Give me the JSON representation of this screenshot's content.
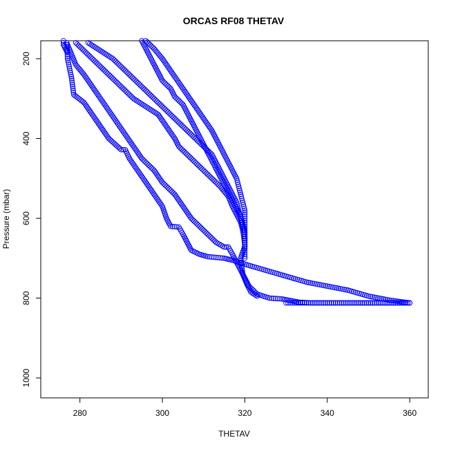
{
  "chart_data": {
    "type": "scatter",
    "title": "ORCAS RF08 THETAV",
    "xlabel": "THETAV",
    "ylabel": "Pressure (mbar)",
    "xlim": [
      270.5,
      364.5
    ],
    "ylim": [
      1050,
      155
    ],
    "y_reversed": true,
    "xticks": [
      280,
      300,
      320,
      340,
      360
    ],
    "yticks": [
      200,
      400,
      600,
      800,
      1000
    ],
    "marker": "open-circle",
    "color": "#0000ff",
    "grid": false,
    "series": [
      {
        "points": [
          [
            276.8,
            160
          ],
          [
            277,
            200
          ],
          [
            278,
            250
          ],
          [
            278.5,
            290
          ],
          [
            281,
            310
          ],
          [
            283,
            340
          ],
          [
            285,
            370
          ],
          [
            287,
            400
          ],
          [
            290,
            428
          ],
          [
            291,
            428
          ],
          [
            292,
            450
          ],
          [
            294,
            480
          ],
          [
            296,
            510
          ],
          [
            298,
            540
          ],
          [
            300,
            570
          ],
          [
            301,
            600
          ],
          [
            302,
            620
          ],
          [
            304,
            622
          ],
          [
            305,
            640
          ],
          [
            306,
            660
          ],
          [
            307,
            680
          ],
          [
            309,
            690
          ],
          [
            311,
            696
          ],
          [
            313,
            698
          ],
          [
            315,
            700
          ],
          [
            317,
            705
          ],
          [
            320,
            715
          ],
          [
            325,
            730
          ],
          [
            330,
            745
          ],
          [
            335,
            760
          ],
          [
            340,
            770
          ],
          [
            345,
            780
          ],
          [
            350,
            795
          ],
          [
            355,
            805
          ],
          [
            360,
            812
          ]
        ]
      },
      {
        "points": [
          [
            277,
            165
          ],
          [
            278,
            190
          ],
          [
            279,
            215
          ],
          [
            281,
            240
          ],
          [
            283,
            270
          ],
          [
            285,
            300
          ],
          [
            287,
            330
          ],
          [
            289,
            360
          ],
          [
            291,
            390
          ],
          [
            293,
            420
          ],
          [
            295,
            450
          ],
          [
            298,
            480
          ],
          [
            300,
            510
          ],
          [
            303,
            540
          ],
          [
            305,
            570
          ],
          [
            307,
            600
          ],
          [
            309,
            620
          ],
          [
            311,
            640
          ],
          [
            313,
            660
          ],
          [
            315,
            672
          ],
          [
            316,
            672
          ],
          [
            317,
            690
          ],
          [
            318,
            710
          ],
          [
            319,
            730
          ],
          [
            320,
            750
          ],
          [
            321,
            770
          ],
          [
            323,
            790
          ],
          [
            326,
            800
          ],
          [
            329,
            802
          ],
          [
            331,
            806
          ],
          [
            333,
            810
          ],
          [
            336,
            812
          ],
          [
            340,
            812
          ],
          [
            345,
            812
          ],
          [
            350,
            812
          ],
          [
            355,
            812
          ],
          [
            360,
            812
          ]
        ]
      },
      {
        "points": [
          [
            279,
            160
          ],
          [
            281,
            180
          ],
          [
            283,
            200
          ],
          [
            285,
            220
          ],
          [
            287,
            240
          ],
          [
            289,
            260
          ],
          [
            291,
            280
          ],
          [
            293,
            300
          ],
          [
            296,
            320
          ],
          [
            299,
            340
          ],
          [
            301,
            370
          ],
          [
            303,
            400
          ],
          [
            304,
            420
          ],
          [
            306,
            440
          ],
          [
            308,
            460
          ],
          [
            310,
            480
          ],
          [
            312,
            500
          ],
          [
            314,
            520
          ],
          [
            316,
            545
          ],
          [
            317,
            570
          ],
          [
            318,
            590
          ],
          [
            319,
            610
          ],
          [
            319.5,
            630
          ],
          [
            319.8,
            650
          ],
          [
            320,
            670
          ],
          [
            319,
            700
          ],
          [
            319.5,
            740
          ],
          [
            320.5,
            765
          ],
          [
            321.5,
            785
          ],
          [
            323,
            795
          ]
        ]
      },
      {
        "points": [
          [
            282,
            160
          ],
          [
            285,
            180
          ],
          [
            288,
            200
          ],
          [
            290,
            220
          ],
          [
            292,
            240
          ],
          [
            294,
            260
          ],
          [
            296,
            280
          ],
          [
            298,
            300
          ],
          [
            300,
            320
          ],
          [
            302,
            340
          ],
          [
            304,
            360
          ],
          [
            306,
            380
          ],
          [
            308,
            400
          ],
          [
            310,
            420
          ],
          [
            312,
            440
          ],
          [
            313,
            460
          ],
          [
            314,
            480
          ],
          [
            315,
            500
          ],
          [
            316,
            520
          ],
          [
            317,
            540
          ],
          [
            318,
            560
          ],
          [
            318.5,
            580
          ],
          [
            319,
            600
          ],
          [
            319.5,
            620
          ],
          [
            320,
            640
          ],
          [
            320,
            670
          ]
        ]
      },
      {
        "points": [
          [
            295,
            155
          ],
          [
            296,
            175
          ],
          [
            297,
            195
          ],
          [
            298,
            215
          ],
          [
            299,
            235
          ],
          [
            300,
            255
          ],
          [
            302,
            275
          ],
          [
            303,
            295
          ],
          [
            305,
            315
          ],
          [
            306,
            335
          ],
          [
            307,
            355
          ],
          [
            308,
            375
          ],
          [
            309,
            395
          ],
          [
            310,
            415
          ],
          [
            311,
            435
          ],
          [
            312,
            455
          ],
          [
            313,
            475
          ],
          [
            314,
            495
          ],
          [
            315,
            515
          ],
          [
            316,
            535
          ],
          [
            317,
            555
          ],
          [
            318,
            575
          ],
          [
            319,
            595
          ],
          [
            319.5,
            615
          ],
          [
            320,
            635
          ],
          [
            320,
            660
          ],
          [
            320,
            680
          ],
          [
            320,
            700
          ]
        ]
      },
      {
        "points": [
          [
            296,
            155
          ],
          [
            298,
            175
          ],
          [
            300,
            200
          ],
          [
            302,
            230
          ],
          [
            304,
            260
          ],
          [
            306,
            290
          ],
          [
            308,
            320
          ],
          [
            310,
            350
          ],
          [
            312,
            380
          ],
          [
            313,
            400
          ],
          [
            314,
            420
          ],
          [
            315,
            440
          ],
          [
            316,
            460
          ],
          [
            317,
            480
          ],
          [
            318,
            500
          ],
          [
            318.5,
            520
          ],
          [
            319,
            540
          ],
          [
            319.5,
            560
          ],
          [
            320,
            580
          ],
          [
            320,
            600
          ],
          [
            320,
            620
          ],
          [
            320,
            640
          ],
          [
            320,
            670
          ]
        ]
      },
      {
        "points": [
          [
            276,
            155
          ],
          [
            276,
            165
          ],
          [
            276.5,
            175
          ],
          [
            277,
            185
          ]
        ]
      },
      {
        "points": [
          [
            330,
            812
          ],
          [
            333,
            812
          ],
          [
            336,
            812
          ],
          [
            339,
            812
          ],
          [
            342,
            812
          ],
          [
            345,
            812
          ],
          [
            348,
            812
          ],
          [
            351,
            812
          ],
          [
            354,
            812
          ],
          [
            357,
            812
          ],
          [
            360,
            812
          ]
        ]
      }
    ]
  }
}
